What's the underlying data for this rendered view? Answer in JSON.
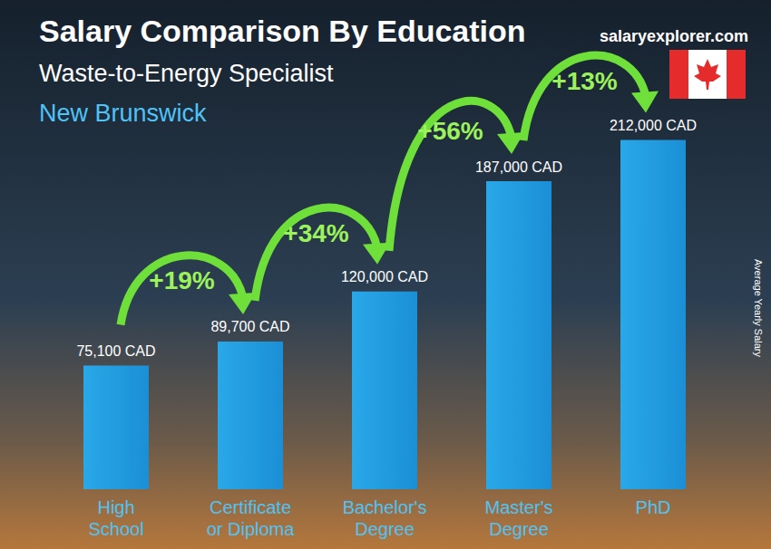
{
  "chart_data": {
    "type": "bar",
    "title": "Salary Comparison By Education",
    "subtitle": "Waste-to-Energy Specialist",
    "location": "New Brunswick",
    "source": "salaryexplorer.com",
    "y_label": "Average Yearly Salary",
    "categories": [
      "High\nSchool",
      "Certificate\nor Diploma",
      "Bachelor's\nDegree",
      "Master's\nDegree",
      "PhD"
    ],
    "values": [
      75100,
      89700,
      120000,
      187000,
      212000
    ],
    "value_labels": [
      "75,100 CAD",
      "89,700 CAD",
      "120,000 CAD",
      "187,000 CAD",
      "212,000 CAD"
    ],
    "annotations": [
      "+19%",
      "+34%",
      "+56%",
      "+13%"
    ],
    "color": "#29a8e8",
    "ylim": [
      0,
      220000
    ],
    "data_labels": true,
    "tick_labels": "x",
    "grid": false
  }
}
